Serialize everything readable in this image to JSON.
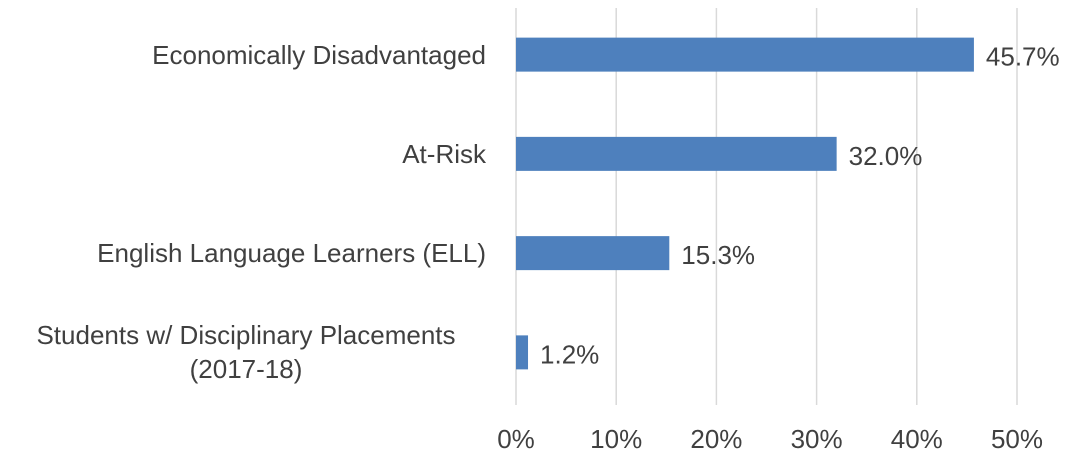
{
  "chart_data": {
    "type": "bar",
    "orientation": "horizontal",
    "categories": [
      "Economically Disadvantaged",
      "At-Risk",
      "English Language Learners (ELL)",
      "Students w/ Disciplinary Placements (2017-18)"
    ],
    "values": [
      45.7,
      32.0,
      15.3,
      1.2
    ],
    "value_labels": [
      "45.7%",
      "32.0%",
      "15.3%",
      "1.2%"
    ],
    "color": "#4e80bd",
    "xlim": [
      0,
      50
    ],
    "xticks": [
      {
        "value": 0,
        "label": "0%"
      },
      {
        "value": 10,
        "label": "10%"
      },
      {
        "value": 20,
        "label": "20%"
      },
      {
        "value": 30,
        "label": "30%"
      },
      {
        "value": 40,
        "label": "40%"
      },
      {
        "value": 50,
        "label": "50%"
      }
    ],
    "grid": true
  }
}
